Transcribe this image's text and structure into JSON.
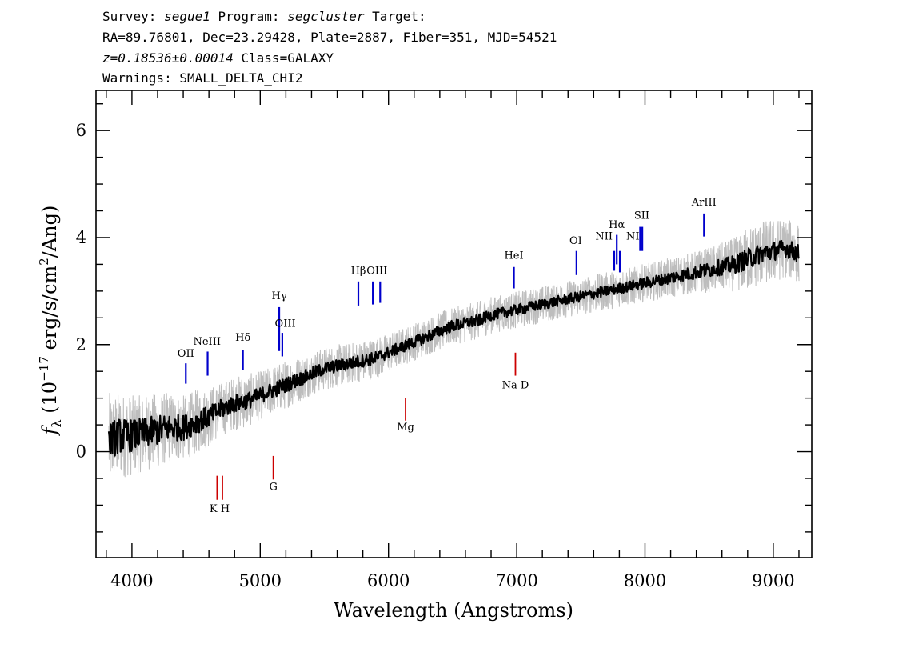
{
  "header": {
    "line1_a": "Survey: ",
    "line1_survey": "segue1",
    "line1_b": " Program: ",
    "line1_program": "segcluster",
    "line1_c": " Target:",
    "line2": "RA=89.76801, Dec=23.29428, Plate=2887, Fiber=351, MJD=54521",
    "line3_z": "z=0.18536±0.00014",
    "line3_class": " Class=GALAXY",
    "line4": "Warnings: SMALL_DELTA_CHI2"
  },
  "chart_data": {
    "type": "line",
    "xlabel": "Wavelength (Angstroms)",
    "ylabel": "f_λ (10^-17 erg/s/cm^2/Ang)",
    "ylabel_parts": {
      "f": "f",
      "sub": "λ",
      "a": " (10",
      "exp1": "−17",
      "b": " erg/s/cm",
      "exp2": "2",
      "c": "/Ang)"
    },
    "xlim": [
      3720,
      9300
    ],
    "ylim": [
      -1.98,
      6.75
    ],
    "xticks": [
      4000,
      5000,
      6000,
      7000,
      8000,
      9000
    ],
    "yticks": [
      0,
      2,
      4,
      6
    ],
    "x_minor_step": 200,
    "y_minor_step": 0.5,
    "grid": false,
    "series": [
      {
        "role": "flux_gray",
        "color": "#bdbdbd",
        "x": [
          3820,
          3900,
          4000,
          4100,
          4200,
          4300,
          4400,
          4500,
          4600,
          4700,
          4800,
          4900,
          5000,
          5100,
          5200,
          5300,
          5400,
          5500,
          5600,
          5700,
          5800,
          5900,
          6000,
          6100,
          6200,
          6300,
          6400,
          6500,
          6600,
          6700,
          6800,
          6900,
          7000,
          7100,
          7200,
          7300,
          7400,
          7500,
          7600,
          7700,
          7800,
          7900,
          8000,
          8100,
          8200,
          8300,
          8400,
          8500,
          8600,
          8700,
          8800,
          8900,
          9000,
          9100,
          9200
        ],
        "values": [
          0.2,
          0.3,
          0.3,
          0.35,
          0.4,
          0.45,
          0.45,
          0.55,
          0.65,
          0.8,
          0.9,
          0.95,
          1.05,
          1.15,
          1.25,
          1.35,
          1.45,
          1.55,
          1.6,
          1.65,
          1.7,
          1.75,
          1.85,
          1.95,
          2.05,
          2.15,
          2.25,
          2.35,
          2.4,
          2.45,
          2.55,
          2.6,
          2.65,
          2.7,
          2.75,
          2.8,
          2.85,
          2.9,
          2.95,
          3.0,
          3.05,
          3.1,
          3.15,
          3.2,
          3.25,
          3.3,
          3.35,
          3.4,
          3.45,
          3.5,
          3.6,
          3.7,
          3.75,
          3.8,
          3.7
        ],
        "noise": [
          0.9,
          0.8,
          0.75,
          0.7,
          0.7,
          0.65,
          0.6,
          0.6,
          0.55,
          0.5,
          0.5,
          0.5,
          0.45,
          0.45,
          0.45,
          0.42,
          0.4,
          0.4,
          0.4,
          0.38,
          0.38,
          0.38,
          0.36,
          0.35,
          0.35,
          0.35,
          0.35,
          0.35,
          0.35,
          0.35,
          0.34,
          0.34,
          0.34,
          0.34,
          0.34,
          0.34,
          0.34,
          0.34,
          0.35,
          0.35,
          0.35,
          0.35,
          0.36,
          0.36,
          0.37,
          0.38,
          0.4,
          0.42,
          0.45,
          0.5,
          0.6,
          0.6,
          0.6,
          0.55,
          0.55
        ]
      },
      {
        "role": "flux_smoothed",
        "color": "#000000",
        "x": [
          3820,
          3900,
          4000,
          4100,
          4200,
          4300,
          4400,
          4500,
          4600,
          4700,
          4800,
          4900,
          5000,
          5100,
          5200,
          5300,
          5400,
          5500,
          5600,
          5700,
          5800,
          5900,
          6000,
          6100,
          6200,
          6300,
          6400,
          6500,
          6600,
          6700,
          6800,
          6900,
          7000,
          7100,
          7200,
          7300,
          7400,
          7500,
          7600,
          7700,
          7800,
          7900,
          8000,
          8100,
          8200,
          8300,
          8400,
          8500,
          8600,
          8700,
          8800,
          8900,
          9000,
          9100,
          9200
        ],
        "values": [
          0.2,
          0.3,
          0.3,
          0.35,
          0.4,
          0.45,
          0.45,
          0.55,
          0.65,
          0.8,
          0.9,
          0.95,
          1.05,
          1.15,
          1.25,
          1.35,
          1.45,
          1.55,
          1.6,
          1.65,
          1.7,
          1.75,
          1.85,
          1.95,
          2.05,
          2.15,
          2.25,
          2.35,
          2.4,
          2.45,
          2.55,
          2.6,
          2.65,
          2.7,
          2.75,
          2.8,
          2.85,
          2.9,
          2.95,
          3.0,
          3.05,
          3.1,
          3.15,
          3.2,
          3.25,
          3.3,
          3.35,
          3.4,
          3.45,
          3.5,
          3.6,
          3.7,
          3.75,
          3.8,
          3.7
        ],
        "noise": [
          0.35,
          0.33,
          0.3,
          0.28,
          0.28,
          0.26,
          0.24,
          0.22,
          0.2,
          0.18,
          0.17,
          0.16,
          0.15,
          0.15,
          0.14,
          0.13,
          0.13,
          0.12,
          0.12,
          0.12,
          0.12,
          0.12,
          0.11,
          0.11,
          0.11,
          0.11,
          0.11,
          0.11,
          0.11,
          0.11,
          0.1,
          0.1,
          0.1,
          0.1,
          0.1,
          0.1,
          0.1,
          0.1,
          0.1,
          0.1,
          0.1,
          0.1,
          0.11,
          0.11,
          0.12,
          0.12,
          0.13,
          0.14,
          0.15,
          0.17,
          0.2,
          0.18,
          0.18,
          0.17,
          0.17
        ]
      }
    ],
    "line_markers": [
      {
        "label": "OII",
        "x": 4420,
        "y1": 1.65,
        "y2": 1.27,
        "color": "#0000cc",
        "label_y": 1.78
      },
      {
        "label": "NeIII",
        "x": 4590,
        "y1": 1.87,
        "y2": 1.42,
        "color": "#0000cc",
        "label_y": 2.03
      },
      {
        "label": "Hδ",
        "x": 4865,
        "y1": 1.9,
        "y2": 1.52,
        "color": "#0000cc",
        "label_y": 2.07
      },
      {
        "label": "Hγ",
        "x": 5148,
        "y1": 2.7,
        "y2": 1.88,
        "color": "#0000cc",
        "label_y": 2.8
      },
      {
        "label": "OIII",
        "x": 5172,
        "y1": 2.22,
        "y2": 1.78,
        "color": "#0000cc",
        "label_y": 2.35
      },
      {
        "label": "Hβ",
        "x": 5765,
        "y1": 3.18,
        "y2": 2.73,
        "color": "#0000cc",
        "label_y": 3.3
      },
      {
        "label": "OIII",
        "x": 5878,
        "y1": 3.18,
        "y2": 2.75,
        "color": "#0000cc",
        "label_y": 3.3
      },
      {
        "label": "OIII",
        "x": 5935,
        "y1": 3.18,
        "y2": 2.78,
        "color": "#0000cc",
        "label_y": 3.3
      },
      {
        "label": "HeI",
        "x": 6978,
        "y1": 3.45,
        "y2": 3.05,
        "color": "#0000cc",
        "label_y": 3.57
      },
      {
        "label": "OI",
        "x": 7466,
        "y1": 3.75,
        "y2": 3.3,
        "color": "#0000cc",
        "label_y": 3.88
      },
      {
        "label": "NII",
        "x": 7760,
        "y1": 3.75,
        "y2": 3.38,
        "color": "#0000cc",
        "label_y": 3.95
      },
      {
        "label": "Hα",
        "x": 7780,
        "y1": 4.05,
        "y2": 3.5,
        "color": "#0000cc",
        "label_y": 4.18
      },
      {
        "label": "NII",
        "x": 7804,
        "y1": 3.75,
        "y2": 3.35,
        "color": "#0000cc",
        "label_y": 3.95
      },
      {
        "label": "SII",
        "x": 7962,
        "y1": 4.2,
        "y2": 3.75,
        "color": "#0000cc",
        "label_y": 4.32
      },
      {
        "label": "SII",
        "x": 7979,
        "y1": 4.2,
        "y2": 3.75,
        "color": "#0000cc",
        "label_y": 4.32
      },
      {
        "label": "ArIII",
        "x": 8460,
        "y1": 4.45,
        "y2": 4.02,
        "color": "#0000cc",
        "label_y": 4.58
      },
      {
        "label": "K",
        "x": 4664,
        "y1": -0.45,
        "y2": -0.9,
        "color": "#cc0000",
        "label_y": -1.1
      },
      {
        "label": "H",
        "x": 4705,
        "y1": -0.45,
        "y2": -0.9,
        "color": "#cc0000",
        "label_y": -1.1
      },
      {
        "label": "G",
        "x": 5102,
        "y1": -0.08,
        "y2": -0.52,
        "color": "#cc0000",
        "label_y": -0.7
      },
      {
        "label": "Mg",
        "x": 6133,
        "y1": 1.0,
        "y2": 0.58,
        "color": "#cc0000",
        "label_y": 0.4
      },
      {
        "label": "Na D",
        "x": 6990,
        "y1": 1.85,
        "y2": 1.42,
        "color": "#cc0000",
        "label_y": 1.22
      }
    ],
    "label_texts": {
      "OII": "OII",
      "NeIII": "NeIII",
      "Hd": "Hδ",
      "Hg": "Hγ",
      "OIII": "OIII",
      "Hb": "Hβ",
      "HeI": "HeI",
      "OI": "OI",
      "NII": "NII",
      "Ha": "Hα",
      "NI": "NI",
      "SII": "SII",
      "ArIII": "ArIII",
      "KH": "K H",
      "G": "G",
      "Mg": "Mg",
      "NaD": "Na  D"
    }
  }
}
